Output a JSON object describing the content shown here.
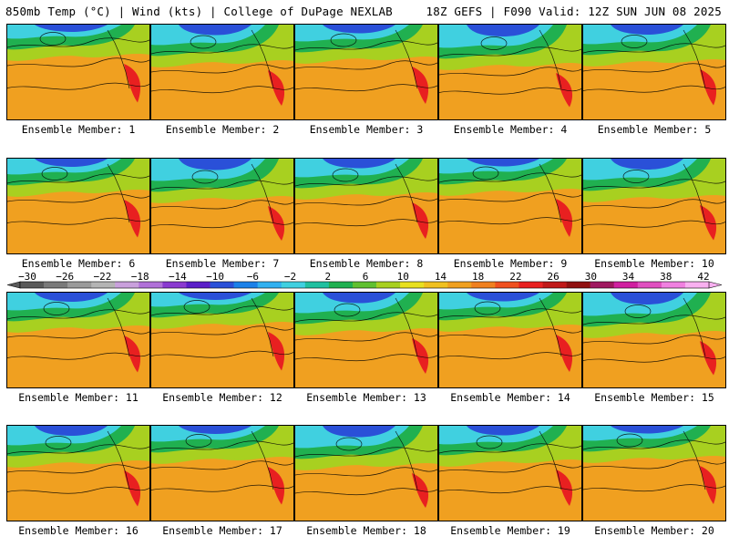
{
  "header": {
    "title_left": "850mb Temp (°C) | Wind (kts) | College of DuPage NEXLAB",
    "title_right": "18Z GEFS | F090 Valid: 12Z SUN JUN 08 2025"
  },
  "panels": [
    {
      "label": "Ensemble Member: 1"
    },
    {
      "label": "Ensemble Member: 2"
    },
    {
      "label": "Ensemble Member: 3"
    },
    {
      "label": "Ensemble Member: 4"
    },
    {
      "label": "Ensemble Member: 5"
    },
    {
      "label": "Ensemble Member: 6"
    },
    {
      "label": "Ensemble Member: 7"
    },
    {
      "label": "Ensemble Member: 8"
    },
    {
      "label": "Ensemble Member: 9"
    },
    {
      "label": "Ensemble Member: 10"
    },
    {
      "label": "Ensemble Member: 11"
    },
    {
      "label": "Ensemble Member: 12"
    },
    {
      "label": "Ensemble Member: 13"
    },
    {
      "label": "Ensemble Member: 14"
    },
    {
      "label": "Ensemble Member: 15"
    },
    {
      "label": "Ensemble Member: 16"
    },
    {
      "label": "Ensemble Member: 17"
    },
    {
      "label": "Ensemble Member: 18"
    },
    {
      "label": "Ensemble Member: 19"
    },
    {
      "label": "Ensemble Member: 20"
    }
  ],
  "colorbar": {
    "tick_labels": [
      "−30",
      "−26",
      "−22",
      "−18",
      "−14",
      "−10",
      "−6",
      "−2",
      "2",
      "6",
      "10",
      "14",
      "18",
      "22",
      "26",
      "30",
      "34",
      "38",
      "42"
    ],
    "colors": [
      "#5a5a5a",
      "#7a7a7a",
      "#9a9a9a",
      "#b4b4b4",
      "#c9a0dc",
      "#b070d8",
      "#8a3ad0",
      "#5a1ec8",
      "#2a50d8",
      "#1a80e8",
      "#30b0f0",
      "#40d0e0",
      "#20c0a0",
      "#20b050",
      "#60c030",
      "#a8d020",
      "#e8e020",
      "#f0c020",
      "#f0a020",
      "#f08020",
      "#f05020",
      "#e82020",
      "#c01818",
      "#901010",
      "#a01860",
      "#d020a0",
      "#e050c0",
      "#f080e0",
      "#f8b0f0"
    ]
  },
  "map_colors": {
    "cold": "#2a50d8",
    "cool": "#40d0e0",
    "mild": "#20b050",
    "warm": "#a8d020",
    "hot": "#f0a020",
    "veryhot": "#e82020"
  }
}
